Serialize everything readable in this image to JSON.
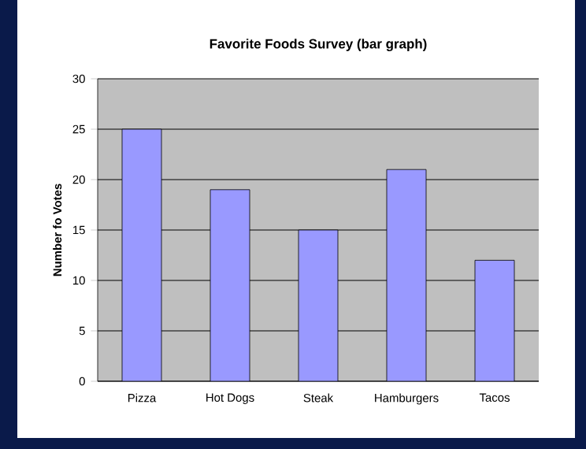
{
  "chart_data": {
    "type": "bar",
    "title": "Favorite Foods Survey (bar graph)",
    "ylabel": "Number fo Votes",
    "categories": [
      "Pizza",
      "Hot Dogs",
      "Steak",
      "Hamburgers",
      "Tacos"
    ],
    "values": [
      25,
      19,
      15,
      21,
      12
    ],
    "color": "#9999ff",
    "ylim": [
      0,
      30
    ],
    "yticks": [
      0,
      5,
      10,
      15,
      20,
      25,
      30
    ],
    "grid": "y"
  }
}
